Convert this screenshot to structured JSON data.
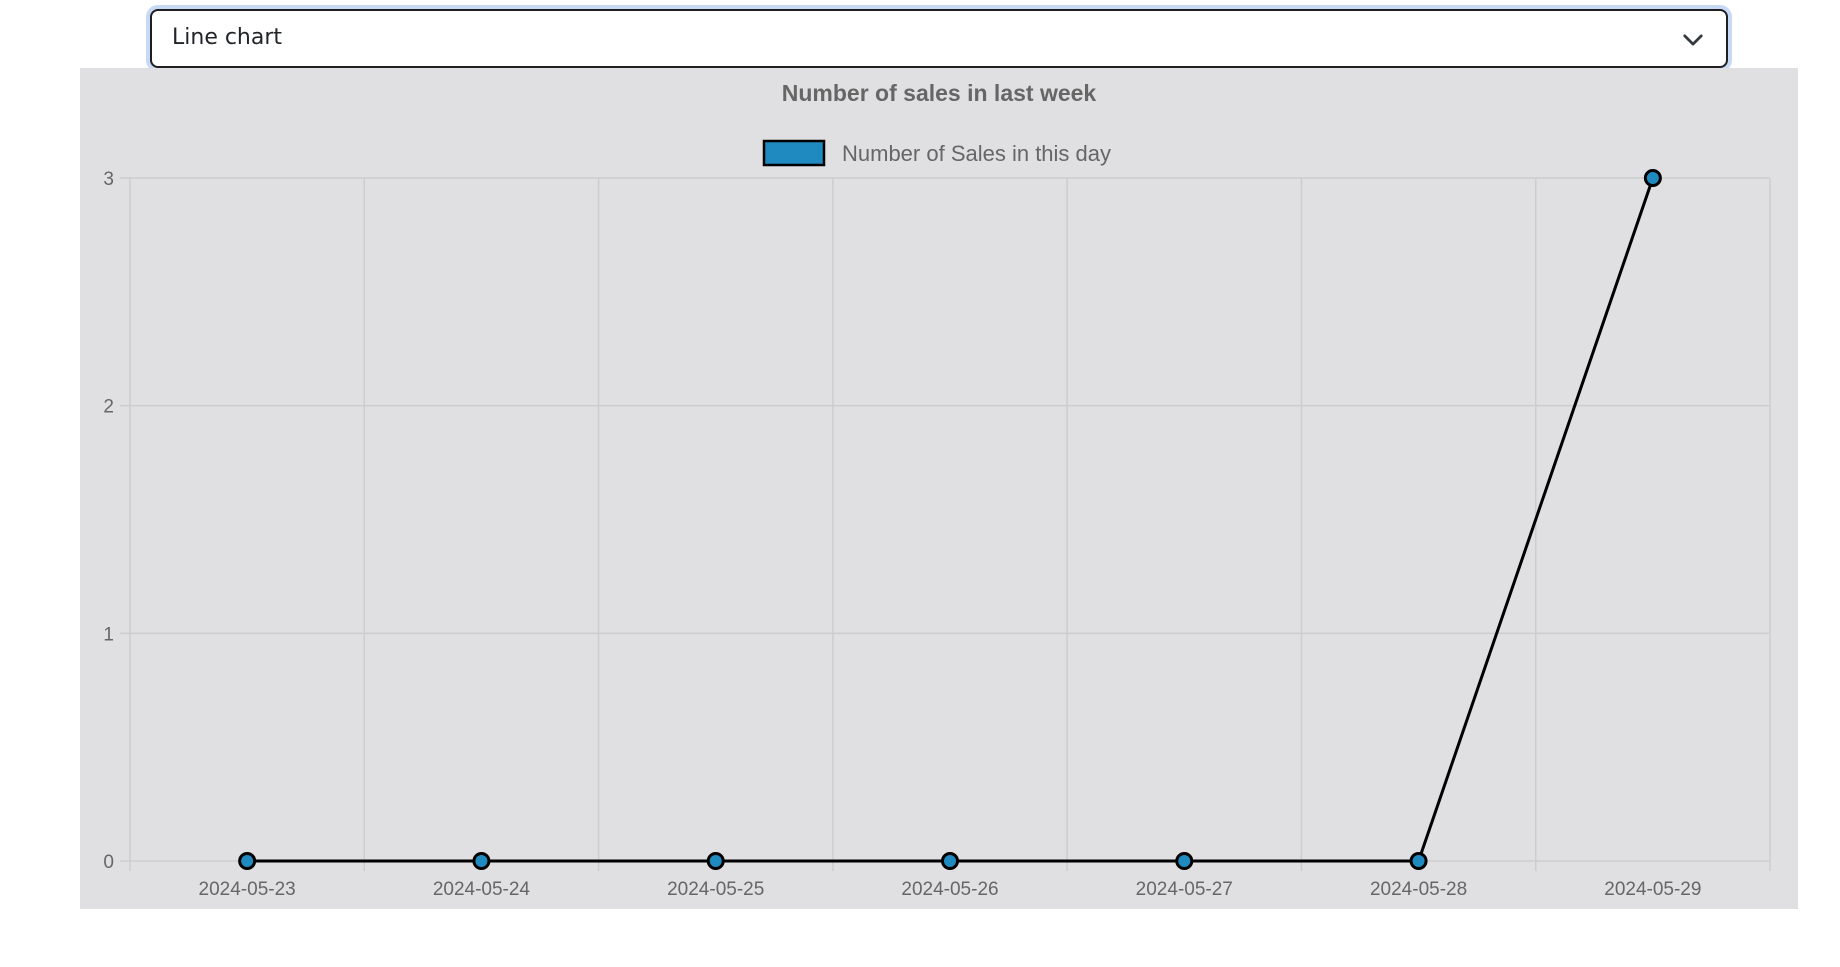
{
  "chart_type_select": {
    "selected": "Line chart"
  },
  "icons": {
    "dropdown": "chevron-down-icon"
  },
  "colors": {
    "panel_background": "#e0e0e2",
    "series_fill": "#1f8ac0",
    "series_stroke": "#000000",
    "grid": "#cdcdcf",
    "text": "#666666",
    "select_focus_ring": "#c7d9f5"
  },
  "chart_data": {
    "type": "line",
    "title": "Number of sales in last week",
    "xlabel": "",
    "ylabel": "",
    "categories": [
      "2024-05-23",
      "2024-05-24",
      "2024-05-25",
      "2024-05-26",
      "2024-05-27",
      "2024-05-28",
      "2024-05-29"
    ],
    "series": [
      {
        "name": "Number of Sales in this day",
        "values": [
          0,
          0,
          0,
          0,
          0,
          0,
          3
        ]
      }
    ],
    "ylim": [
      0,
      3
    ],
    "yticks": [
      0,
      1,
      2,
      3
    ],
    "grid": true,
    "legend_position": "top"
  }
}
